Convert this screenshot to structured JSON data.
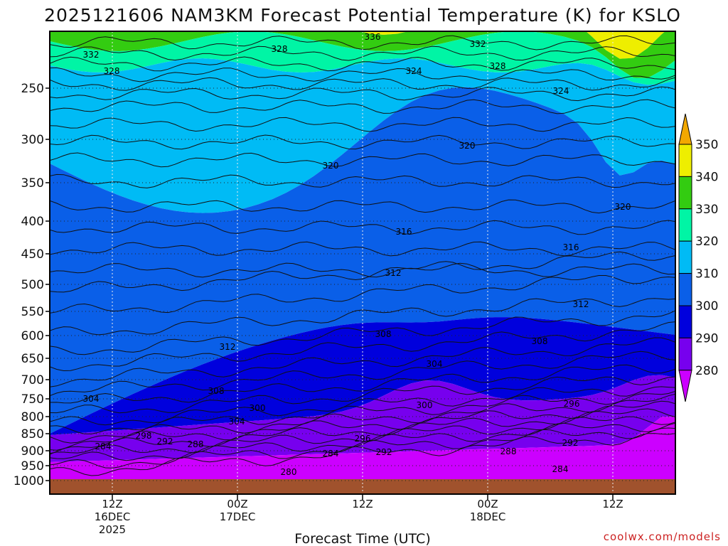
{
  "chart_data": {
    "type": "filled-contour",
    "title": "2025121606 NAM3KM Forecast Potential Temperature (K) for KSLO",
    "xlabel": "Forecast Time (UTC)",
    "ylabel": "",
    "credit": "coolwx.com/models",
    "y_axis": {
      "log_scale": true,
      "range": [
        1000,
        200
      ],
      "ticks": [
        250,
        300,
        350,
        400,
        450,
        500,
        550,
        600,
        650,
        700,
        750,
        800,
        850,
        900,
        950,
        1000
      ]
    },
    "x_axis": {
      "ticks": [
        {
          "h": 6,
          "label": "12Z",
          "sub1": "16DEC",
          "sub2": "2025"
        },
        {
          "h": 18,
          "label": "00Z",
          "sub1": "17DEC",
          "sub2": ""
        },
        {
          "h": 30,
          "label": "12Z",
          "sub1": "",
          "sub2": ""
        },
        {
          "h": 42,
          "label": "00Z",
          "sub1": "18DEC",
          "sub2": ""
        },
        {
          "h": 54,
          "label": "12Z",
          "sub1": "",
          "sub2": ""
        }
      ],
      "range_hours": [
        0,
        60
      ]
    },
    "grid": true,
    "colorbar": {
      "levels": [
        280,
        290,
        300,
        310,
        320,
        330,
        340,
        350
      ],
      "colors": [
        "#cc00ff",
        "#7700ee",
        "#0000dd",
        "#0a5fe8",
        "#00bbf5",
        "#00f5a5",
        "#33cc11",
        "#eeee00",
        "#f2a800"
      ],
      "labels": [
        "280",
        "290",
        "300",
        "310",
        "320",
        "330",
        "340",
        "350"
      ]
    },
    "contour_labels": [
      "332",
      "336",
      "328",
      "332",
      "328",
      "324",
      "328",
      "324",
      "320",
      "320",
      "320",
      "316",
      "316",
      "312",
      "312",
      "312",
      "308",
      "308",
      "304",
      "308",
      "304",
      "300",
      "300",
      "296",
      "304",
      "298",
      "296",
      "292",
      "292",
      "284",
      "292",
      "288",
      "288",
      "284",
      "284",
      "280"
    ]
  }
}
